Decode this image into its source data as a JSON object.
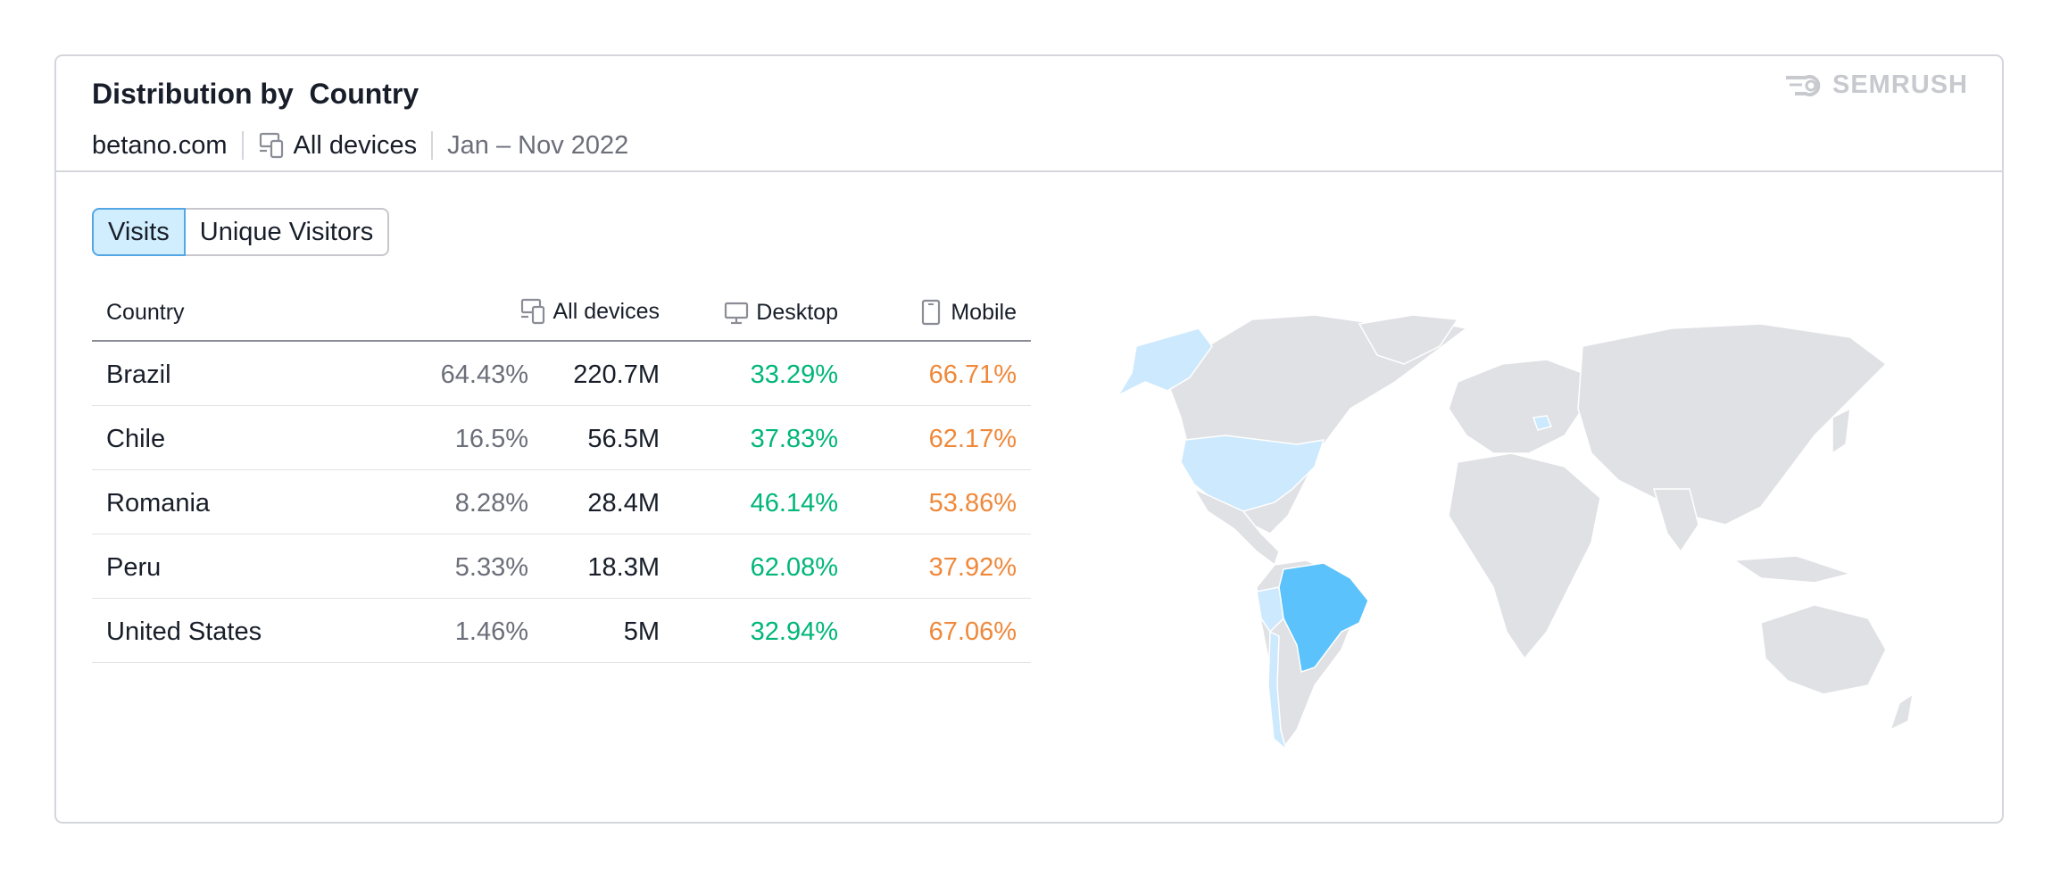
{
  "header": {
    "title": "Distribution by  Country",
    "domain": "betano.com",
    "devices": "All devices",
    "date_range": "Jan – Nov 2022",
    "logo_text": "SEMRUSH"
  },
  "tabs": [
    {
      "label": "Visits",
      "active": true
    },
    {
      "label": "Unique Visitors",
      "active": false
    }
  ],
  "table": {
    "columns": {
      "country": "Country",
      "all_devices": "All devices",
      "desktop": "Desktop",
      "mobile": "Mobile"
    },
    "rows": [
      {
        "country": "Brazil",
        "share": "64.43%",
        "visits": "220.7M",
        "desktop": "33.29%",
        "mobile": "66.71%"
      },
      {
        "country": "Chile",
        "share": "16.5%",
        "visits": "56.5M",
        "desktop": "37.83%",
        "mobile": "62.17%"
      },
      {
        "country": "Romania",
        "share": "8.28%",
        "visits": "28.4M",
        "desktop": "46.14%",
        "mobile": "53.86%"
      },
      {
        "country": "Peru",
        "share": "5.33%",
        "visits": "18.3M",
        "desktop": "62.08%",
        "mobile": "37.92%"
      },
      {
        "country": "United States",
        "share": "1.46%",
        "visits": "5M",
        "desktop": "32.94%",
        "mobile": "67.06%"
      }
    ]
  },
  "colors": {
    "desktop": "#00b67a",
    "mobile": "#f0883a",
    "map_land": "#e0e1e5",
    "map_highlight_strong": "#5bc2fb",
    "map_highlight_light": "#cde9fd",
    "tab_active_bg": "#d1eefe"
  },
  "icons": {
    "devices": "devices-icon",
    "desktop": "desktop-icon",
    "mobile": "mobile-icon",
    "logo": "semrush-logo-icon"
  }
}
